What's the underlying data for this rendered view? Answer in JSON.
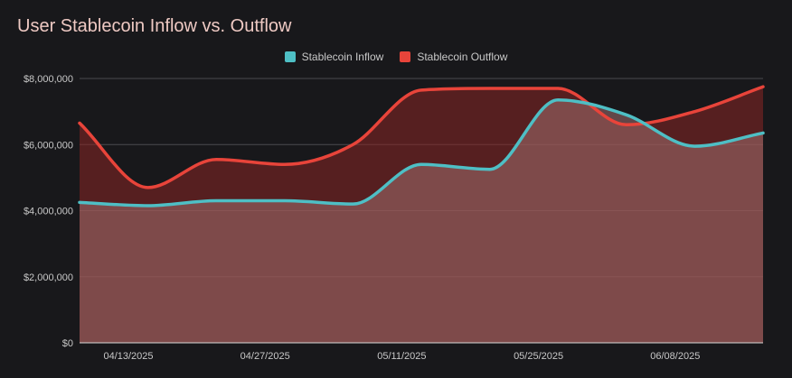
{
  "chart_data": {
    "type": "area",
    "title": "User Stablecoin Inflow vs. Outflow",
    "xlabel": "",
    "ylabel": "",
    "ylim": [
      0,
      8000000
    ],
    "y_ticks": [
      0,
      2000000,
      4000000,
      6000000,
      8000000
    ],
    "y_tick_labels": [
      "$0",
      "$2,000,000",
      "$4,000,000",
      "$6,000,000",
      "$8,000,000"
    ],
    "x_range": [
      0,
      70
    ],
    "x_ticks": [
      5,
      19,
      33,
      47,
      61
    ],
    "x_tick_labels": [
      "04/13/2025",
      "04/27/2025",
      "05/11/2025",
      "05/25/2025",
      "06/08/2025"
    ],
    "grid": true,
    "legend_position": "top",
    "x_note": "x values are days since 04/08/2025",
    "series": [
      {
        "name": "Stablecoin Inflow",
        "color": "#4ebfc5",
        "x": [
          0,
          7,
          14,
          21,
          28,
          35,
          42,
          49,
          56,
          63,
          70
        ],
        "values": [
          4250000,
          4150000,
          4300000,
          4300000,
          4200000,
          5400000,
          5250000,
          7350000,
          6900000,
          5950000,
          6350000
        ]
      },
      {
        "name": "Stablecoin Outflow",
        "color": "#e8443a",
        "x": [
          0,
          7,
          14,
          21,
          28,
          35,
          42,
          49,
          56,
          63,
          70
        ],
        "values": [
          6650000,
          4700000,
          5550000,
          5400000,
          6000000,
          7650000,
          7700000,
          7700000,
          6600000,
          7000000,
          7750000
        ]
      }
    ]
  }
}
